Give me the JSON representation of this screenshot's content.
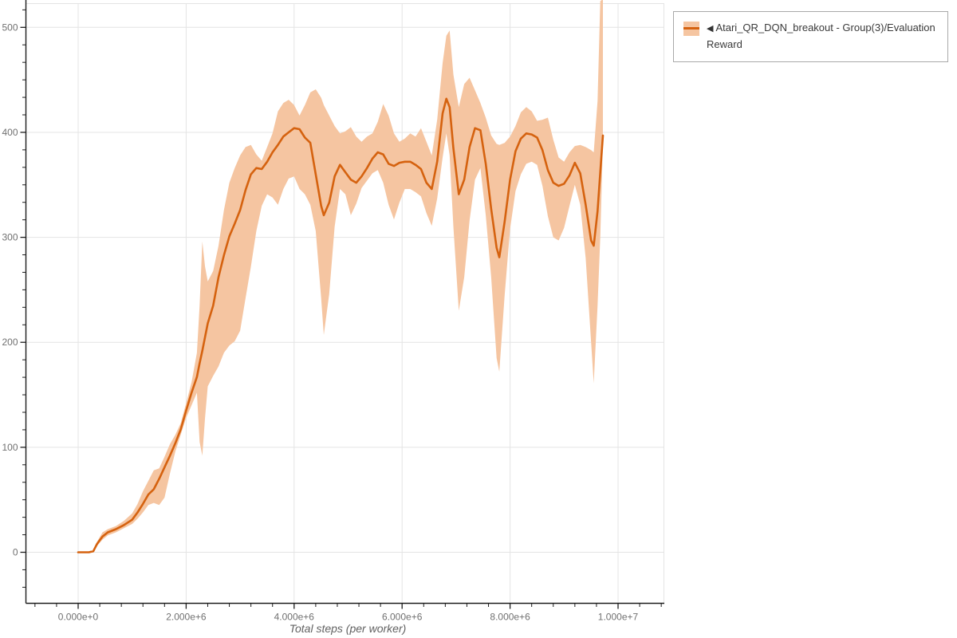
{
  "page": {
    "background": "#ffffff"
  },
  "legend": {
    "marker_icon": "◀",
    "label": "Atari_QR_DQN_breakout - Group(3)/Evaluation Reward",
    "series_color": "#d5620f",
    "band_color": "#f5c5a1",
    "border_color": "#a9a9a9"
  },
  "chart_data": {
    "type": "line",
    "title": "",
    "xlabel": "Total steps (per worker)",
    "ylabel": "",
    "grid": true,
    "grid_color": "#e4e4e4",
    "axis_color": "#1c1c1c",
    "tick_label_color": "#707070",
    "legend_position": "top-right-outside",
    "xlim": [
      -975000,
      10855000
    ],
    "ylim": [
      -48,
      523
    ],
    "x_ticks": [
      {
        "value": 0,
        "label": "0.000e+0"
      },
      {
        "value": 2000000,
        "label": "2.000e+6"
      },
      {
        "value": 4000000,
        "label": "4.000e+6"
      },
      {
        "value": 6000000,
        "label": "6.000e+6"
      },
      {
        "value": 8000000,
        "label": "8.000e+6"
      },
      {
        "value": 10000000,
        "label": "1.000e+7"
      }
    ],
    "y_ticks": [
      {
        "value": 0,
        "label": "0"
      },
      {
        "value": 100,
        "label": "100"
      },
      {
        "value": 200,
        "label": "200"
      },
      {
        "value": 300,
        "label": "300"
      },
      {
        "value": 400,
        "label": "400"
      },
      {
        "value": 500,
        "label": "500"
      }
    ],
    "series": [
      {
        "name": "Atari_QR_DQN_breakout - Group(3)/Evaluation Reward",
        "color": "#d5620f",
        "band_color": "#f5c5a1",
        "x": [
          0,
          200000,
          280000,
          350000,
          450000,
          550000,
          700000,
          850000,
          1000000,
          1100000,
          1200000,
          1300000,
          1400000,
          1500000,
          1600000,
          1700000,
          1800000,
          1900000,
          2000000,
          2100000,
          2200000,
          2250000,
          2300000,
          2350000,
          2400000,
          2500000,
          2600000,
          2700000,
          2800000,
          2900000,
          3000000,
          3100000,
          3200000,
          3300000,
          3400000,
          3500000,
          3600000,
          3700000,
          3800000,
          3900000,
          4000000,
          4100000,
          4200000,
          4300000,
          4400000,
          4500000,
          4550000,
          4650000,
          4750000,
          4850000,
          4950000,
          5050000,
          5150000,
          5250000,
          5350000,
          5450000,
          5550000,
          5650000,
          5750000,
          5850000,
          5950000,
          6050000,
          6150000,
          6250000,
          6350000,
          6450000,
          6550000,
          6650000,
          6750000,
          6820000,
          6880000,
          6950000,
          7050000,
          7150000,
          7250000,
          7350000,
          7450000,
          7550000,
          7650000,
          7750000,
          7800000,
          7900000,
          8000000,
          8100000,
          8200000,
          8300000,
          8400000,
          8500000,
          8600000,
          8700000,
          8800000,
          8900000,
          9000000,
          9100000,
          9200000,
          9300000,
          9400000,
          9500000,
          9550000,
          9620000,
          9670000,
          9720000
        ],
        "mean": [
          0,
          0,
          1,
          8,
          15,
          19,
          22,
          26,
          31,
          38,
          46,
          55,
          60,
          70,
          81,
          92,
          104,
          117,
          135,
          152,
          167,
          180,
          192,
          205,
          218,
          235,
          262,
          283,
          301,
          313,
          326,
          345,
          360,
          366,
          365,
          372,
          381,
          388,
          396,
          400,
          404,
          403,
          395,
          390,
          360,
          330,
          321,
          333,
          358,
          369,
          362,
          355,
          352,
          358,
          366,
          375,
          381,
          379,
          370,
          368,
          371,
          372,
          372,
          369,
          365,
          352,
          346,
          372,
          418,
          432,
          424,
          385,
          341,
          355,
          386,
          404,
          402,
          370,
          327,
          290,
          281,
          315,
          355,
          382,
          394,
          399,
          398,
          395,
          383,
          364,
          352,
          349,
          351,
          359,
          371,
          361,
          331,
          297,
          292,
          325,
          362,
          397
        ],
        "lower": [
          0,
          0,
          0,
          6,
          12,
          16,
          19,
          23,
          27,
          32,
          38,
          45,
          47,
          45,
          52,
          75,
          96,
          112,
          128,
          140,
          152,
          105,
          92,
          128,
          158,
          168,
          177,
          190,
          197,
          201,
          211,
          242,
          272,
          306,
          330,
          341,
          338,
          331,
          346,
          356,
          358,
          346,
          341,
          331,
          306,
          242,
          207,
          246,
          310,
          346,
          341,
          321,
          332,
          347,
          354,
          361,
          364,
          352,
          331,
          317,
          333,
          346,
          346,
          343,
          339,
          323,
          311,
          337,
          376,
          399,
          378,
          310,
          230,
          262,
          316,
          355,
          366,
          321,
          262,
          185,
          172,
          245,
          308,
          344,
          360,
          370,
          372,
          369,
          349,
          320,
          300,
          297,
          309,
          330,
          350,
          331,
          280,
          200,
          161,
          235,
          300,
          390
        ],
        "upper": [
          0,
          0,
          2,
          10,
          19,
          22,
          25,
          30,
          37,
          46,
          58,
          68,
          78,
          80,
          91,
          103,
          112,
          123,
          142,
          162,
          190,
          235,
          296,
          272,
          258,
          268,
          292,
          326,
          352,
          366,
          378,
          386,
          388,
          379,
          373,
          386,
          399,
          420,
          428,
          431,
          426,
          416,
          426,
          438,
          441,
          433,
          426,
          416,
          406,
          399,
          401,
          405,
          396,
          391,
          396,
          399,
          410,
          427,
          416,
          399,
          391,
          394,
          399,
          396,
          404,
          391,
          378,
          412,
          466,
          492,
          497,
          455,
          424,
          446,
          452,
          440,
          428,
          414,
          397,
          389,
          388,
          390,
          396,
          406,
          419,
          424,
          420,
          411,
          412,
          414,
          393,
          376,
          372,
          381,
          387,
          388,
          386,
          383,
          381,
          430,
          525,
          527
        ]
      }
    ]
  }
}
